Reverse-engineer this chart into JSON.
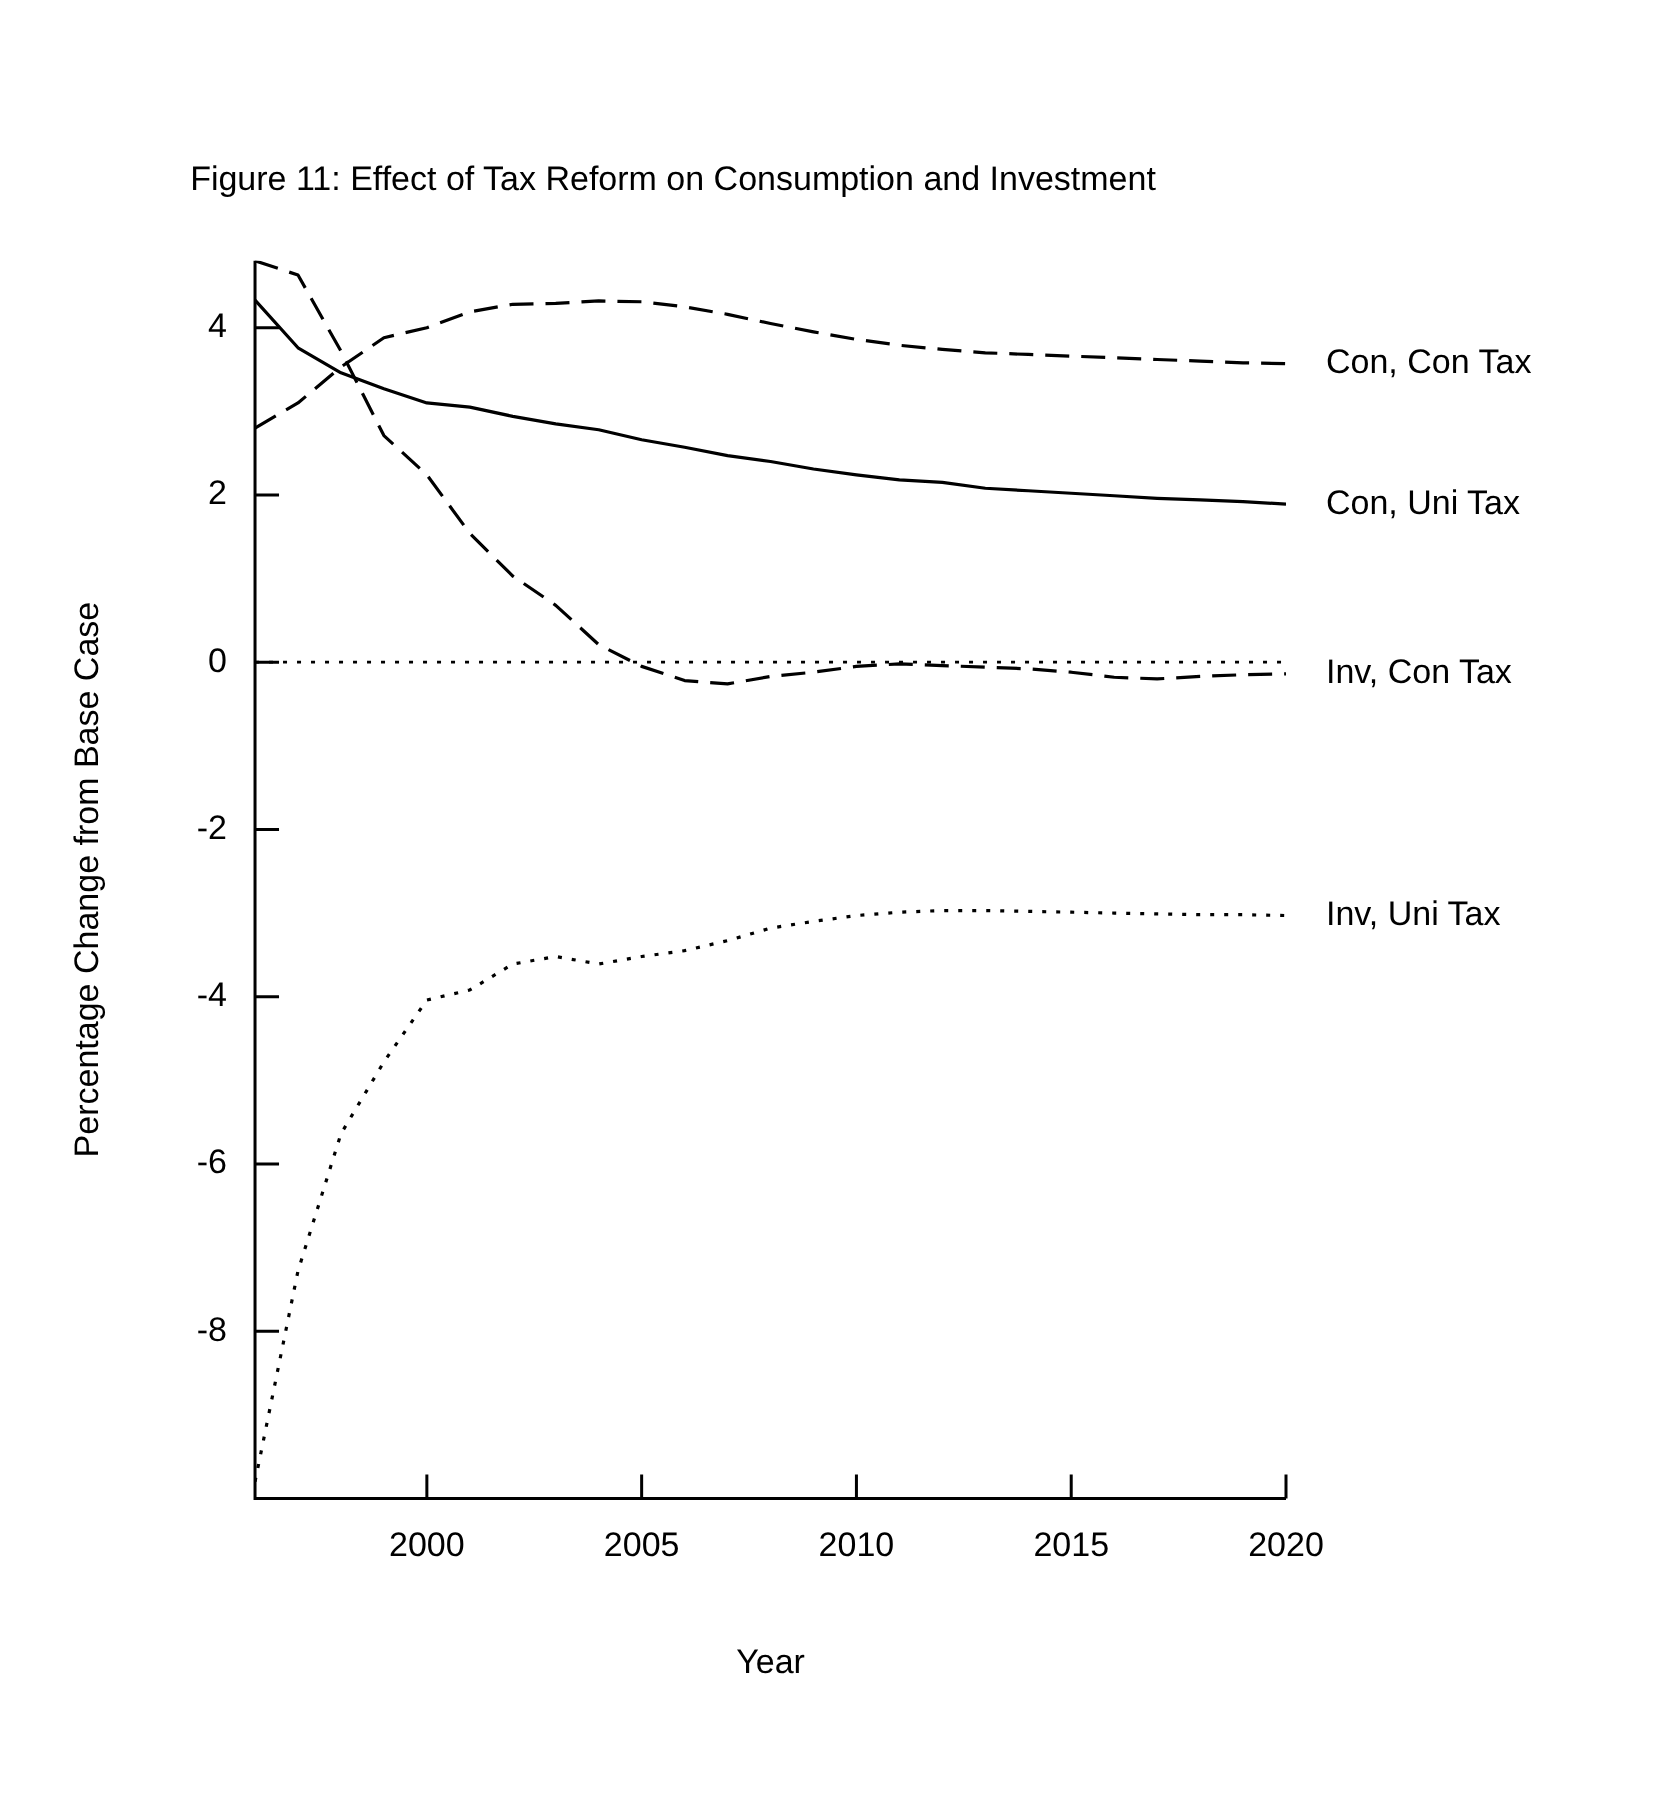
{
  "chart_data": {
    "type": "line",
    "title": "Figure 11: Effect of Tax Reform on Consumption and Investment",
    "xlabel": "Year",
    "ylabel": "Percentage Change from Base Case",
    "x": [
      1996,
      1997,
      1998,
      1999,
      2000,
      2001,
      2002,
      2003,
      2004,
      2005,
      2006,
      2007,
      2008,
      2009,
      2010,
      2011,
      2012,
      2013,
      2014,
      2015,
      2016,
      2017,
      2018,
      2019,
      2020
    ],
    "series": [
      {
        "name": "Con, Con Tax",
        "color": "#000000",
        "line_style": "dashed",
        "values": [
          2.8,
          3.1,
          3.53,
          3.88,
          4.0,
          4.19,
          4.28,
          4.29,
          4.32,
          4.31,
          4.25,
          4.16,
          4.05,
          3.95,
          3.86,
          3.79,
          3.74,
          3.7,
          3.68,
          3.66,
          3.64,
          3.62,
          3.6,
          3.58,
          3.57
        ]
      },
      {
        "name": "Con, Uni Tax",
        "color": "#000000",
        "line_style": "solid",
        "values": [
          4.33,
          3.76,
          3.46,
          3.27,
          3.1,
          3.05,
          2.94,
          2.85,
          2.78,
          2.66,
          2.57,
          2.47,
          2.4,
          2.31,
          2.24,
          2.18,
          2.15,
          2.08,
          2.05,
          2.02,
          1.99,
          1.96,
          1.94,
          1.92,
          1.89
        ]
      },
      {
        "name": "Inv, Con Tax",
        "color": "#000000",
        "line_style": "dashed",
        "values": [
          4.8,
          4.63,
          3.72,
          2.71,
          2.24,
          1.54,
          1.03,
          0.68,
          0.21,
          -0.05,
          -0.22,
          -0.26,
          -0.17,
          -0.12,
          -0.05,
          -0.02,
          -0.04,
          -0.06,
          -0.08,
          -0.12,
          -0.18,
          -0.2,
          -0.17,
          -0.15,
          -0.14
        ]
      },
      {
        "name": "Inv, Uni Tax",
        "color": "#000000",
        "line_style": "dotted",
        "values": [
          -9.8,
          -7.28,
          -5.64,
          -4.78,
          -4.04,
          -3.92,
          -3.61,
          -3.52,
          -3.61,
          -3.52,
          -3.45,
          -3.33,
          -3.18,
          -3.1,
          -3.03,
          -2.99,
          -2.97,
          -2.97,
          -2.98,
          -2.99,
          -3.0,
          -3.01,
          -3.02,
          -3.02,
          -3.03
        ]
      }
    ],
    "ref_lines": [
      {
        "axis": "y",
        "value": 0,
        "line_style": "dotted",
        "color": "#000000"
      }
    ],
    "xlim": [
      1996,
      2020
    ],
    "xticks": [
      2000,
      2005,
      2010,
      2015,
      2020
    ],
    "ylim": [
      -10,
      4.8
    ],
    "yticks": [
      -8,
      -6,
      -4,
      -2,
      0,
      2,
      4
    ],
    "grid": false,
    "legend": false,
    "marker": "none"
  }
}
